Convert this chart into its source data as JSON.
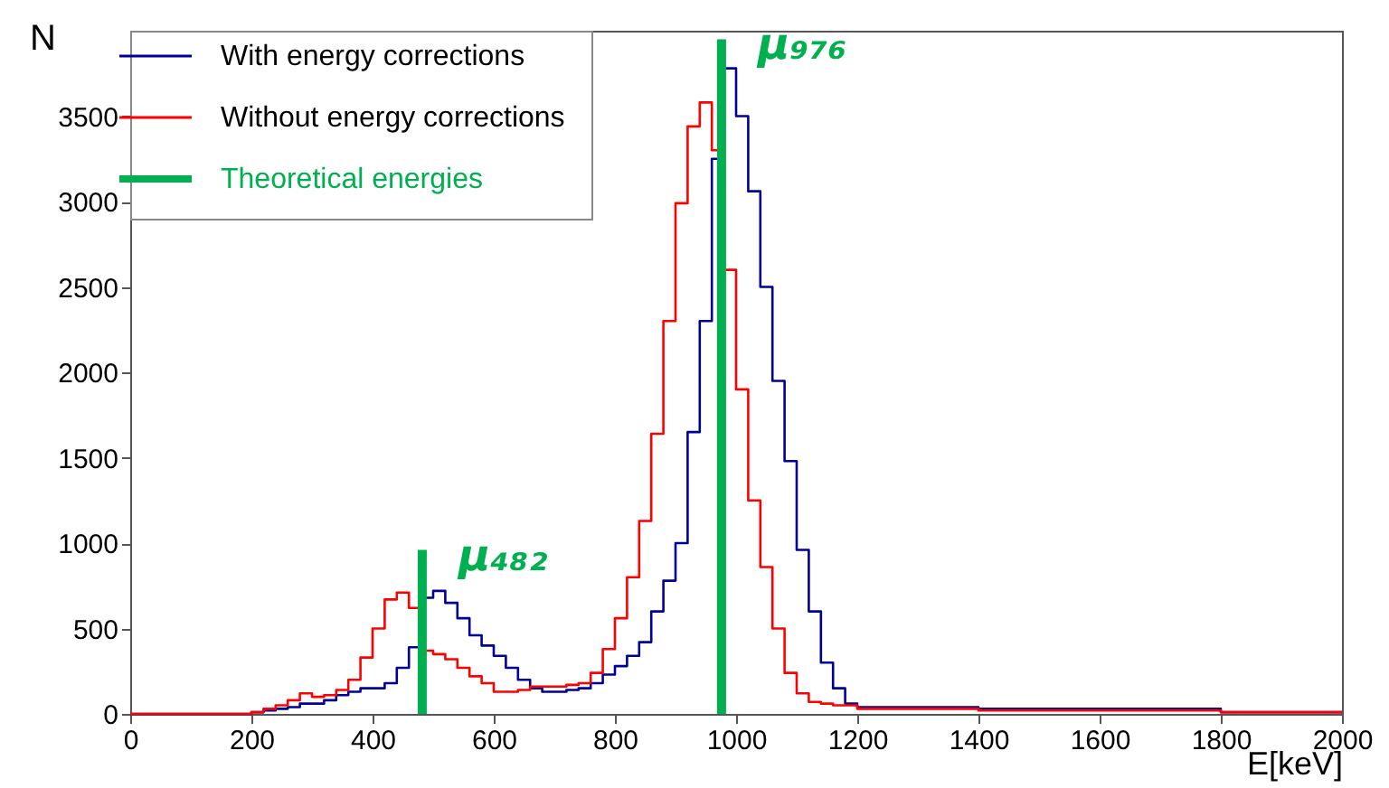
{
  "chart_data": {
    "type": "histogram",
    "xlabel": "E[keV]",
    "ylabel": "N",
    "bins": [
      0,
      20,
      40,
      60,
      80,
      100,
      120,
      140,
      160,
      180,
      200,
      220,
      240,
      260,
      280,
      300,
      320,
      340,
      360,
      380,
      400,
      420,
      440,
      460,
      480,
      500,
      520,
      540,
      560,
      580,
      600,
      620,
      640,
      660,
      680,
      700,
      720,
      740,
      760,
      780,
      800,
      820,
      840,
      860,
      880,
      900,
      920,
      940,
      960,
      980,
      1000,
      1020,
      1040,
      1060,
      1080,
      1100,
      1120,
      1140,
      1160,
      1180,
      1200,
      1220,
      1240,
      1260,
      1280,
      1300,
      1320,
      1340,
      1360,
      1380,
      1400,
      1420,
      1440,
      1460,
      1480,
      1500,
      1520,
      1540,
      1560,
      1580,
      1600,
      1620,
      1640,
      1660,
      1680,
      1700,
      1720,
      1740,
      1760,
      1780,
      1800,
      1820,
      1840,
      1860,
      1880,
      1900,
      1920,
      1940,
      1960,
      1980,
      2000
    ],
    "series": [
      {
        "name": "With energy corrections",
        "color": "#000099",
        "values": [
          0,
          0,
          0,
          0,
          0,
          0,
          0,
          0,
          0,
          0,
          10,
          20,
          30,
          40,
          60,
          60,
          80,
          110,
          130,
          150,
          150,
          180,
          270,
          390,
          680,
          720,
          650,
          560,
          460,
          400,
          340,
          270,
          200,
          150,
          130,
          130,
          140,
          150,
          180,
          230,
          280,
          340,
          420,
          600,
          780,
          1000,
          1650,
          2300,
          3250,
          3780,
          3500,
          3060,
          2500,
          1950,
          1480,
          960,
          600,
          300,
          150,
          60,
          40,
          40,
          40,
          40,
          40,
          40,
          40,
          40,
          40,
          40,
          30,
          30,
          30,
          30,
          30,
          30,
          30,
          30,
          30,
          30,
          30,
          30,
          30,
          30,
          30,
          30,
          30,
          30,
          30,
          30,
          10,
          10,
          10,
          10,
          10,
          10,
          10,
          10,
          10,
          10
        ]
      },
      {
        "name": "Without energy corrections",
        "color": "#ff0000",
        "values": [
          0,
          0,
          0,
          0,
          0,
          0,
          0,
          0,
          0,
          0,
          10,
          30,
          50,
          80,
          120,
          100,
          110,
          140,
          200,
          330,
          500,
          670,
          710,
          620,
          370,
          350,
          320,
          270,
          220,
          180,
          130,
          130,
          140,
          160,
          160,
          160,
          170,
          180,
          240,
          380,
          560,
          800,
          1130,
          1640,
          2300,
          2990,
          3440,
          3580,
          3300,
          2600,
          1900,
          1250,
          860,
          500,
          240,
          120,
          70,
          60,
          50,
          50,
          30,
          30,
          30,
          30,
          30,
          30,
          30,
          30,
          30,
          30,
          20,
          20,
          20,
          20,
          20,
          20,
          20,
          20,
          20,
          20,
          20,
          20,
          20,
          20,
          20,
          20,
          20,
          20,
          20,
          20,
          10,
          10,
          10,
          10,
          10,
          10,
          10,
          10,
          10,
          10
        ]
      },
      {
        "name": "Theoretical energies",
        "type": "bar",
        "color": "#00b050",
        "x": [
          482,
          976
        ],
        "values": [
          960,
          3950
        ]
      }
    ],
    "annotations": [
      {
        "text": "μ₄₈₂",
        "x": 482,
        "y": 960
      },
      {
        "text": "μ₉₇₆",
        "x": 976,
        "y": 3950
      }
    ],
    "xlim": [
      0,
      2000
    ],
    "xticks": [
      0,
      200,
      400,
      600,
      800,
      1000,
      1200,
      1400,
      1600,
      1800,
      2000
    ],
    "ylim": [
      0,
      4000
    ],
    "yticks": [
      0,
      500,
      1000,
      1500,
      2000,
      2500,
      3000,
      3500
    ],
    "legend": "top left"
  }
}
